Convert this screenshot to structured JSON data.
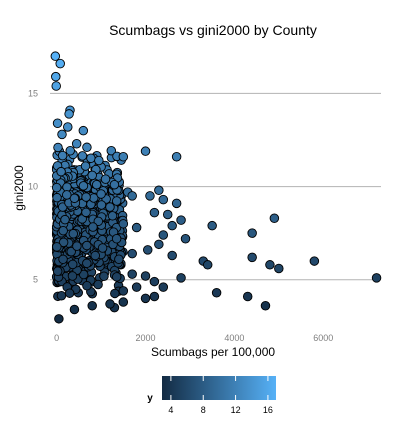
{
  "chart_data": {
    "type": "scatter",
    "title": "Scumbags vs  gini2000 by County",
    "xlabel": "Scumbags per 100,000",
    "ylabel": "gini2000",
    "xlim": [
      -150,
      7300
    ],
    "ylim": [
      2.3,
      17.6
    ],
    "x_ticks": [
      0,
      2000,
      4000,
      6000
    ],
    "x_tick_labels": [
      "0",
      "2000",
      "4000",
      "6000"
    ],
    "y_ticks": [
      5,
      10,
      15
    ],
    "y_tick_labels": [
      "5",
      "10",
      "15"
    ],
    "grid": "horizontal",
    "legend": {
      "title": "y",
      "position": "bottom",
      "range": [
        2.9,
        17.0
      ],
      "ticks": [
        4,
        8,
        12,
        16
      ],
      "tick_labels": [
        "4",
        "8",
        "12",
        "16"
      ],
      "low_color": "#132B43",
      "high_color": "#56B1F7"
    },
    "points": [
      {
        "x": -30,
        "y": 17.0
      },
      {
        "x": 80,
        "y": 16.6
      },
      {
        "x": -20,
        "y": 15.9
      },
      {
        "x": -10,
        "y": 15.4
      },
      {
        "x": 300,
        "y": 14.1
      },
      {
        "x": 280,
        "y": 13.9
      },
      {
        "x": 20,
        "y": 13.4
      },
      {
        "x": 250,
        "y": 13.2
      },
      {
        "x": 600,
        "y": 13.0
      },
      {
        "x": 120,
        "y": 12.8
      },
      {
        "x": 450,
        "y": 12.3
      },
      {
        "x": 30,
        "y": 12.1
      },
      {
        "x": 2000,
        "y": 11.9
      },
      {
        "x": 1500,
        "y": 11.6
      },
      {
        "x": 2700,
        "y": 11.6
      },
      {
        "x": 950,
        "y": 11.4
      },
      {
        "x": 650,
        "y": 11.1
      },
      {
        "x": 100,
        "y": 10.8
      },
      {
        "x": 800,
        "y": 10.6
      },
      {
        "x": 1100,
        "y": 10.4
      },
      {
        "x": 1300,
        "y": 10.1
      },
      {
        "x": 1600,
        "y": 9.7
      },
      {
        "x": 2300,
        "y": 9.8
      },
      {
        "x": 2700,
        "y": 9.1
      },
      {
        "x": 1700,
        "y": 9.5
      },
      {
        "x": 2100,
        "y": 9.5
      },
      {
        "x": 2400,
        "y": 9.3
      },
      {
        "x": 2200,
        "y": 8.6
      },
      {
        "x": 2500,
        "y": 8.5
      },
      {
        "x": 2800,
        "y": 8.2
      },
      {
        "x": 3500,
        "y": 7.9
      },
      {
        "x": 4900,
        "y": 8.3
      },
      {
        "x": 4400,
        "y": 7.5
      },
      {
        "x": 2600,
        "y": 7.9
      },
      {
        "x": 1800,
        "y": 7.8
      },
      {
        "x": 2400,
        "y": 7.4
      },
      {
        "x": 2900,
        "y": 7.2
      },
      {
        "x": 2300,
        "y": 6.9
      },
      {
        "x": 2050,
        "y": 6.6
      },
      {
        "x": 1700,
        "y": 6.4
      },
      {
        "x": 2600,
        "y": 6.3
      },
      {
        "x": 4400,
        "y": 6.2
      },
      {
        "x": 3300,
        "y": 6.0
      },
      {
        "x": 3400,
        "y": 5.8
      },
      {
        "x": 5800,
        "y": 6.0
      },
      {
        "x": 4800,
        "y": 5.8
      },
      {
        "x": 5000,
        "y": 5.6
      },
      {
        "x": 7200,
        "y": 5.1
      },
      {
        "x": 2000,
        "y": 5.2
      },
      {
        "x": 2800,
        "y": 5.1
      },
      {
        "x": 2200,
        "y": 4.9
      },
      {
        "x": 2400,
        "y": 4.6
      },
      {
        "x": 1800,
        "y": 4.6
      },
      {
        "x": 3600,
        "y": 4.3
      },
      {
        "x": 4300,
        "y": 4.1
      },
      {
        "x": 4700,
        "y": 3.6
      },
      {
        "x": 2200,
        "y": 4.1
      },
      {
        "x": 2000,
        "y": 4.0
      },
      {
        "x": 1500,
        "y": 3.8
      },
      {
        "x": 1300,
        "y": 3.5
      },
      {
        "x": 1200,
        "y": 3.7
      },
      {
        "x": 800,
        "y": 3.6
      },
      {
        "x": 400,
        "y": 3.4
      },
      {
        "x": 50,
        "y": 2.9
      },
      {
        "x": 1500,
        "y": 4.4
      },
      {
        "x": 1700,
        "y": 5.3
      },
      {
        "x": 1400,
        "y": 6.1
      },
      {
        "x": 1350,
        "y": 7.2
      },
      {
        "x": 1500,
        "y": 8.0
      },
      {
        "x": 1200,
        "y": 8.9
      },
      {
        "x": 1000,
        "y": 9.6
      },
      {
        "x": 900,
        "y": 10.1
      }
    ],
    "dense_cluster": {
      "x_range": [
        0,
        1500
      ],
      "y_range": [
        3.5,
        12.5
      ],
      "count": 1000
    }
  }
}
